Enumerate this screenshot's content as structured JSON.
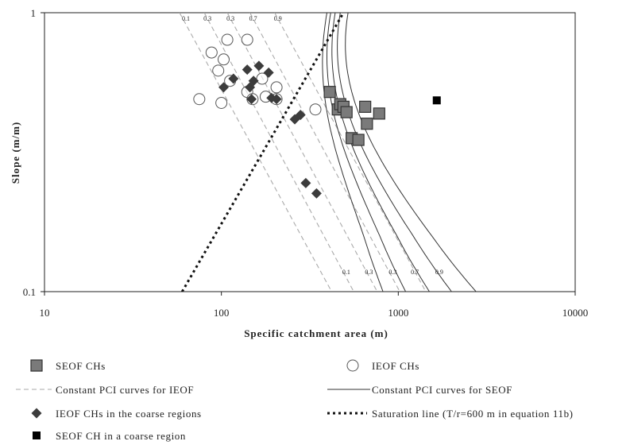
{
  "chart_data": {
    "type": "scatter",
    "xscale": "log",
    "yscale": "log",
    "xlim": [
      10,
      10000
    ],
    "ylim": [
      0.1,
      1
    ],
    "xlabel": "Specific catchment area (m)",
    "ylabel": "Slope (m/m)",
    "x_ticks": [
      "10",
      "100",
      "1000",
      "10000"
    ],
    "y_ticks": [
      "0.1",
      "1"
    ],
    "grid": false,
    "colors": {
      "seof": "#7a7a7a",
      "seof_stroke": "#333333",
      "ieof_curve": "#aaaaaa",
      "seof_curve": "#333333",
      "diamond": "#3c3c3c",
      "coarse_square": "#000000",
      "saturation": "#111111"
    },
    "series": [
      {
        "name": "SEOF CHs",
        "marker": "square-grey",
        "points": [
          [
            410,
            0.52
          ],
          [
            455,
            0.45
          ],
          [
            470,
            0.47
          ],
          [
            490,
            0.46
          ],
          [
            510,
            0.44
          ],
          [
            545,
            0.355
          ],
          [
            595,
            0.35
          ],
          [
            650,
            0.46
          ],
          [
            665,
            0.4
          ],
          [
            780,
            0.435
          ]
        ]
      },
      {
        "name": "IEOF CHs",
        "marker": "circle-open",
        "points": [
          [
            75,
            0.49
          ],
          [
            88,
            0.72
          ],
          [
            96,
            0.62
          ],
          [
            100,
            0.475
          ],
          [
            103,
            0.68
          ],
          [
            108,
            0.8
          ],
          [
            112,
            0.57
          ],
          [
            140,
            0.8
          ],
          [
            140,
            0.52
          ],
          [
            150,
            0.49
          ],
          [
            170,
            0.58
          ],
          [
            178,
            0.5
          ],
          [
            205,
            0.54
          ],
          [
            205,
            0.49
          ],
          [
            340,
            0.45
          ],
          [
            460,
            0.45
          ]
        ]
      },
      {
        "name": "IEOF CHs in the coarse regions",
        "marker": "diamond",
        "points": [
          [
            103,
            0.54
          ],
          [
            117,
            0.58
          ],
          [
            140,
            0.625
          ],
          [
            145,
            0.54
          ],
          [
            148,
            0.49
          ],
          [
            152,
            0.57
          ],
          [
            163,
            0.645
          ],
          [
            185,
            0.61
          ],
          [
            192,
            0.495
          ],
          [
            205,
            0.49
          ],
          [
            260,
            0.415
          ],
          [
            280,
            0.43
          ],
          [
            300,
            0.245
          ],
          [
            345,
            0.225
          ]
        ]
      },
      {
        "name": "SEOF CH in a coarse region",
        "marker": "square-black",
        "points": [
          [
            1650,
            0.485
          ]
        ]
      }
    ],
    "ieof_curves": {
      "name": "Constant PCI curves for IEOF",
      "labels": [
        "0.1",
        "0.3",
        "0.3",
        "0.7",
        "0.9"
      ],
      "x_at_top": [
        58,
        80,
        108,
        145,
        200
      ],
      "x_at_bottom": [
        420,
        560,
        760,
        1020,
        1430
      ]
    },
    "seof_curves": {
      "name": "Constant PCI curves for SEOF",
      "labels": [
        "0.1",
        "0.3",
        "0.3",
        "0.7",
        "0.9"
      ],
      "x_at_top": [
        395,
        415,
        440,
        470,
        520
      ],
      "x_at_bottom": [
        820,
        1100,
        1500,
        2000,
        2750
      ]
    },
    "saturation_line": {
      "name": "Saturation line (T/r=600 m in equation 11b)",
      "points": [
        [
          60,
          0.1
        ],
        [
          490,
          1.0
        ]
      ]
    }
  }
}
